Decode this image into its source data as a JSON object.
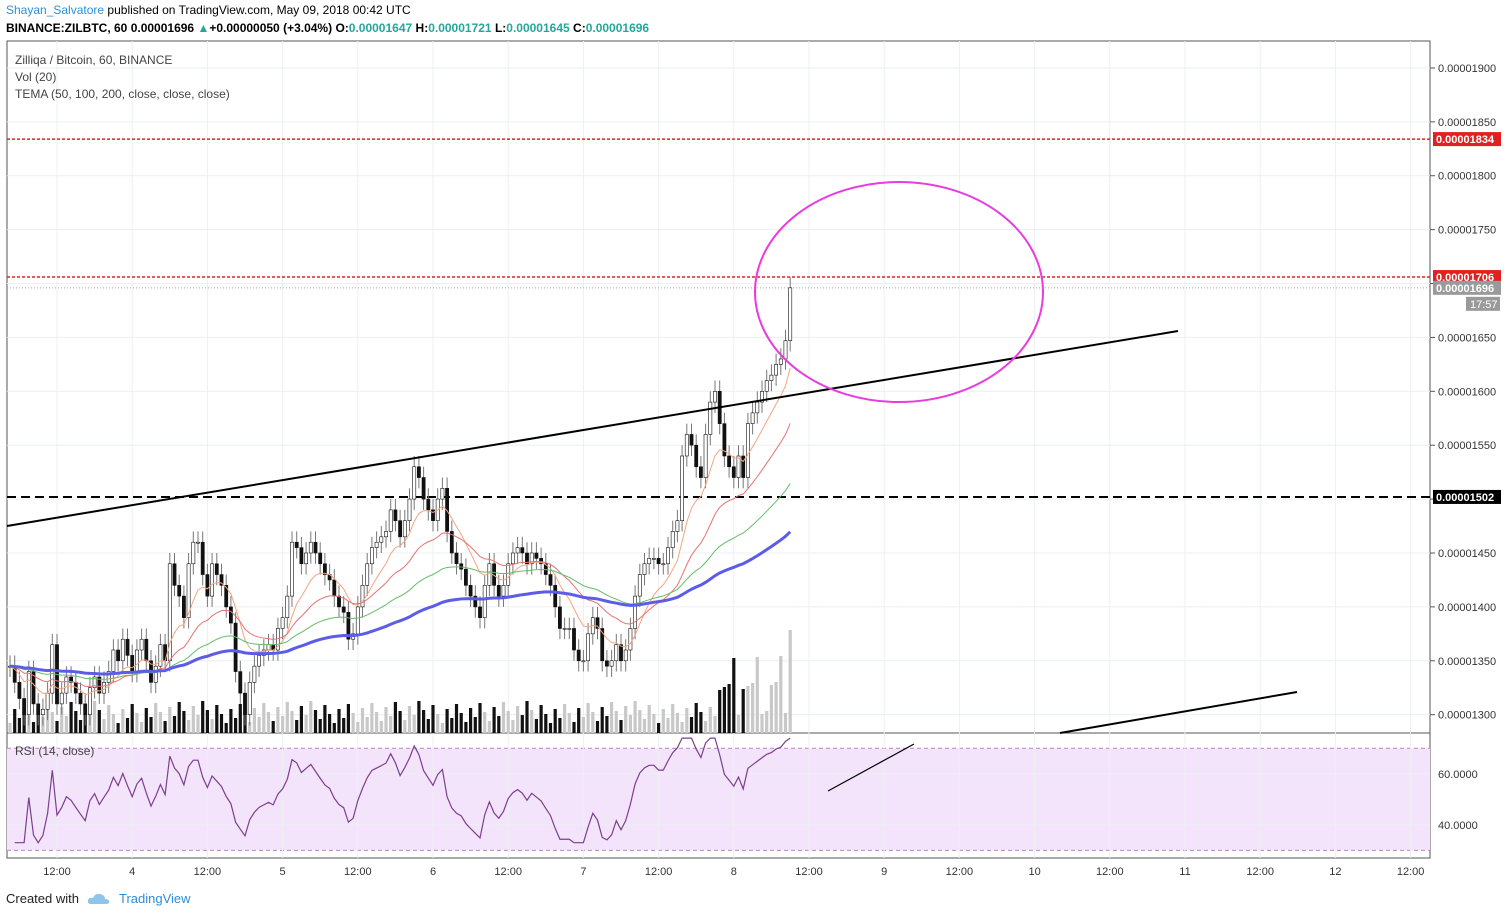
{
  "header": {
    "user": "Shayan_Salvatore",
    "published": "published on TradingView.com, May 09, 2018 00:42 UTC",
    "symbol": "BINANCE:ZILBTC, 60",
    "last": "0.00001696",
    "change_arrow": "▲",
    "change": "+0.00000050 (+3.04%)",
    "o_label": "O:",
    "o_val": "0.00001647",
    "h_label": "H:",
    "h_val": "0.00001721",
    "l_label": "L:",
    "l_val": "0.00001645",
    "c_label": "C:",
    "c_val": "0.00001696"
  },
  "legend": {
    "series": "Zilliqa / Bitcoin, 60, BINANCE",
    "volume": "Vol (20)",
    "tema": "TEMA (50, 100, 200, close, close, close)",
    "rsi": "RSI (14, close)"
  },
  "footer": {
    "created_with": "Created with",
    "brand": "TradingView"
  },
  "chart_data": {
    "type": "candlestick",
    "symbol": "ZILBTC",
    "interval": "60",
    "exchange": "BINANCE",
    "price_axis_ticks": [
      "0.00001900",
      "0.00001850",
      "0.00001800",
      "0.00001750",
      "0.00001700",
      "0.00001650",
      "0.00001600",
      "0.00001550",
      "0.00001500",
      "0.00001450",
      "0.00001400",
      "0.00001350",
      "0.00001300"
    ],
    "price_axis_range": [
      1.283e-05,
      1.925e-05
    ],
    "time_axis_ticks": [
      "12:00",
      "4",
      "12:00",
      "5",
      "12:00",
      "6",
      "12:00",
      "7",
      "12:00",
      "8",
      "12:00",
      "9",
      "12:00",
      "10",
      "12:00",
      "11",
      "12:00",
      "12",
      "12:00"
    ],
    "price_labels": [
      {
        "value": "0.00001834",
        "style": "red-dotted"
      },
      {
        "value": "0.00001706",
        "style": "red-dotted"
      },
      {
        "value": "0.00001696",
        "style": "last-price"
      },
      {
        "value": "0.00001502",
        "style": "black-dashed"
      }
    ],
    "countdown": "17:57",
    "candles_close": [
      1.345e-05,
      1.33e-05,
      1.315e-05,
      1.3e-05,
      1.34e-05,
      1.31e-05,
      1.3e-05,
      1.305e-05,
      1.32e-05,
      1.365e-05,
      1.31e-05,
      1.32e-05,
      1.335e-05,
      1.33e-05,
      1.32e-05,
      1.31e-05,
      1.3e-05,
      1.325e-05,
      1.335e-05,
      1.32e-05,
      1.33e-05,
      1.34e-05,
      1.36e-05,
      1.35e-05,
      1.37e-05,
      1.355e-05,
      1.34e-05,
      1.36e-05,
      1.37e-05,
      1.35e-05,
      1.33e-05,
      1.345e-05,
      1.365e-05,
      1.35e-05,
      1.44e-05,
      1.42e-05,
      1.41e-05,
      1.39e-05,
      1.44e-05,
      1.46e-05,
      1.46e-05,
      1.43e-05,
      1.41e-05,
      1.44e-05,
      1.43e-05,
      1.42e-05,
      1.4e-05,
      1.385e-05,
      1.34e-05,
      1.32e-05,
      1.3e-05,
      1.33e-05,
      1.345e-05,
      1.355e-05,
      1.36e-05,
      1.365e-05,
      1.36e-05,
      1.38e-05,
      1.39e-05,
      1.41e-05,
      1.46e-05,
      1.455e-05,
      1.44e-05,
      1.45e-05,
      1.46e-05,
      1.45e-05,
      1.44e-05,
      1.43e-05,
      1.425e-05,
      1.41e-05,
      1.4e-05,
      1.395e-05,
      1.37e-05,
      1.375e-05,
      1.4e-05,
      1.42e-05,
      1.44e-05,
      1.455e-05,
      1.46e-05,
      1.465e-05,
      1.47e-05,
      1.49e-05,
      1.48e-05,
      1.465e-05,
      1.48e-05,
      1.5e-05,
      1.53e-05,
      1.52e-05,
      1.5e-05,
      1.49e-05,
      1.48e-05,
      1.5e-05,
      1.51e-05,
      1.47e-05,
      1.45e-05,
      1.44e-05,
      1.435e-05,
      1.42e-05,
      1.41e-05,
      1.4e-05,
      1.39e-05,
      1.42e-05,
      1.44e-05,
      1.42e-05,
      1.41e-05,
      1.42e-05,
      1.44e-05,
      1.45e-05,
      1.455e-05,
      1.45e-05,
      1.44e-05,
      1.45e-05,
      1.445e-05,
      1.44e-05,
      1.43e-05,
      1.42e-05,
      1.4e-05,
      1.38e-05,
      1.38e-05,
      1.38e-05,
      1.36e-05,
      1.35e-05,
      1.35e-05,
      1.375e-05,
      1.39e-05,
      1.38e-05,
      1.35e-05,
      1.345e-05,
      1.35e-05,
      1.365e-05,
      1.35e-05,
      1.36e-05,
      1.38e-05,
      1.41e-05,
      1.43e-05,
      1.44e-05,
      1.445e-05,
      1.445e-05,
      1.44e-05,
      1.44e-05,
      1.455e-05,
      1.47e-05,
      1.48e-05,
      1.54e-05,
      1.56e-05,
      1.55e-05,
      1.53e-05,
      1.52e-05,
      1.56e-05,
      1.59e-05,
      1.6e-05,
      1.57e-05,
      1.54e-05,
      1.53e-05,
      1.52e-05,
      1.54e-05,
      1.52e-05,
      1.57e-05,
      1.58e-05,
      1.59e-05,
      1.6e-05,
      1.61e-05,
      1.615e-05,
      1.625e-05,
      1.63e-05,
      1.647e-05,
      1.696e-05
    ]
  }
}
